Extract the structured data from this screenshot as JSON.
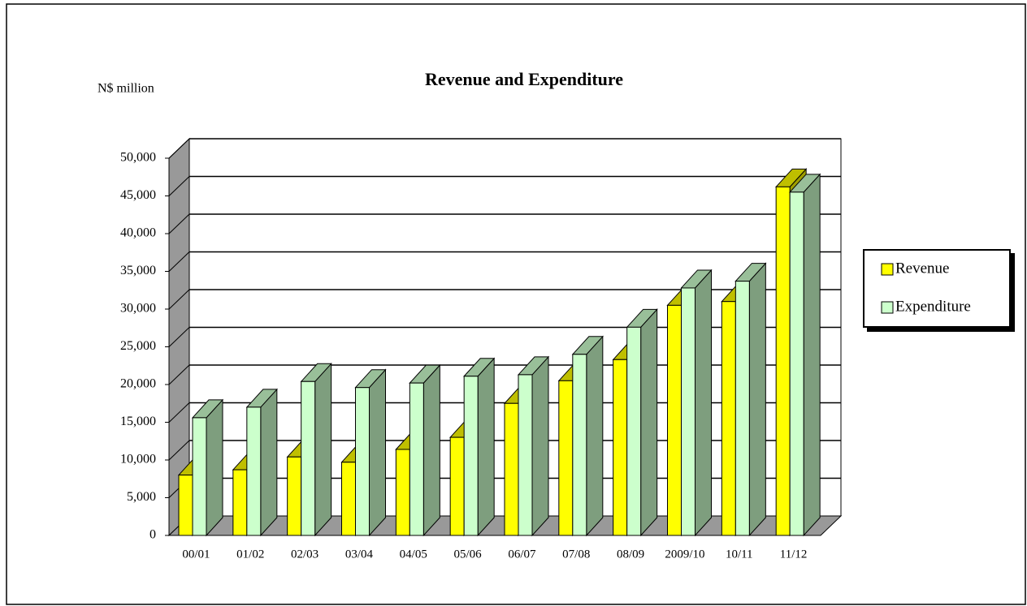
{
  "chart_data": {
    "type": "bar3d",
    "title": "Revenue and Expenditure",
    "ylabel": "N$ million",
    "categories": [
      "00/01",
      "01/02",
      "02/03",
      "03/04",
      "04/05",
      "05/06",
      "06/07",
      "07/08",
      "08/09",
      "2009/10",
      "10/11",
      "11/12"
    ],
    "series": [
      {
        "name": "Revenue",
        "color": "#ffff00",
        "values": [
          8000,
          8700,
          10400,
          9700,
          11400,
          13000,
          17500,
          20500,
          23300,
          30500,
          31000,
          46200
        ]
      },
      {
        "name": "Expenditure",
        "color": "#ccffcc",
        "values": [
          15600,
          17000,
          20400,
          19600,
          20200,
          21100,
          21300,
          24000,
          27600,
          32800,
          33700,
          45500
        ]
      }
    ],
    "ylim": [
      0,
      50000
    ],
    "yticks": [
      0,
      {
        "value": 5000,
        "label": "5,000"
      },
      {
        "value": 10000,
        "label": "10,000"
      },
      {
        "value": 15000,
        "label": "15,000"
      },
      {
        "value": 20000,
        "label": "20,000"
      },
      {
        "value": 25000,
        "label": "25,000"
      },
      {
        "value": 30000,
        "label": "30,000"
      },
      {
        "value": 35000,
        "label": "35,000"
      },
      {
        "value": 40000,
        "label": "40,000"
      },
      {
        "value": 45000,
        "label": "45,000"
      },
      {
        "value": 50000,
        "label": "50,000"
      }
    ],
    "grid": true,
    "legend": "right"
  }
}
